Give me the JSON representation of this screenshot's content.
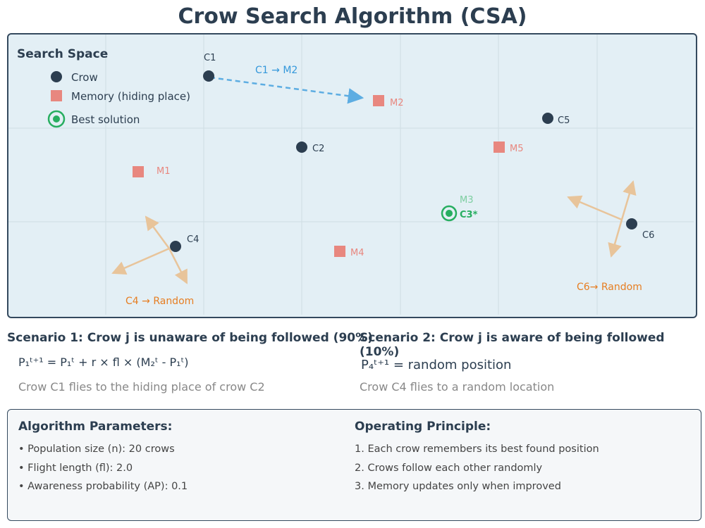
{
  "title": "Crow Search Algorithm (CSA)",
  "search_space": {
    "title": "Search Space",
    "legend": {
      "crow": "Crow",
      "memory": "Memory (hiding place)",
      "best": "Best solution"
    },
    "crows": [
      "C1",
      "C2",
      "C3*",
      "C4",
      "C5",
      "C6"
    ],
    "memories": [
      "M1",
      "M2",
      "M3",
      "M4",
      "M5"
    ],
    "annotations": {
      "c1_to_m2": "C1 → M2",
      "c4_random": "C4 → Random",
      "c6_random": "C6→ Random"
    }
  },
  "scenario1": {
    "title": "Scenario 1: Crow j is unaware of being followed (90%)",
    "formula": "P₁ᵗ⁺¹ = P₁ᵗ + r × fl × (M₂ᵗ - P₁ᵗ)",
    "description": "Crow C1 flies to the hiding place of crow C2"
  },
  "scenario2": {
    "title": "Scenario 2: Crow j is aware of being followed (10%)",
    "formula": "P₄ᵗ⁺¹ = random position",
    "description": "Crow C4 flies to a random location"
  },
  "parameters": {
    "heading": "Algorithm Parameters:",
    "items": [
      "• Population size (n): 20 crows",
      "• Flight length (fl): 2.0",
      "• Awareness probability (AP): 0.1"
    ]
  },
  "principle": {
    "heading": "Operating Principle:",
    "items": [
      "1. Each crow remembers its best found position",
      "2. Crows follow each other randomly",
      "3. Memory updates only when improved"
    ]
  },
  "colors": {
    "crow": "#2c3e50",
    "memory": "#e8877f",
    "best": "#27ae60",
    "follow_arrow": "#5dade2",
    "random_arrow": "#e8c49a",
    "annotation": "#e67e22"
  }
}
